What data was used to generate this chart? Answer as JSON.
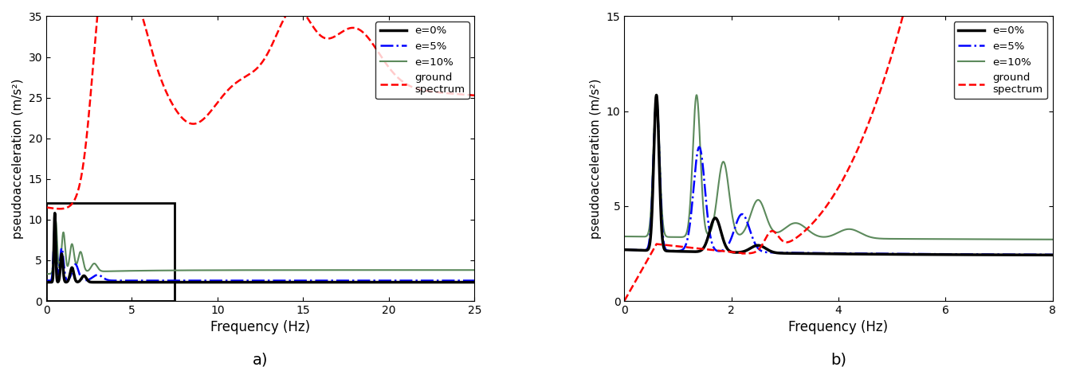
{
  "fig_width": 13.4,
  "fig_height": 4.61,
  "dpi": 100,
  "subplot_a": {
    "xlabel": "Frequency (Hz)",
    "ylabel": "pseudoacceleration (m/s²)",
    "xlim": [
      0,
      25
    ],
    "ylim": [
      0,
      35
    ],
    "yticks": [
      0,
      5,
      10,
      15,
      20,
      25,
      30,
      35
    ],
    "xticks": [
      0,
      5,
      10,
      15,
      20,
      25
    ],
    "label_a": "a)",
    "rect_x0": 0,
    "rect_y0": 0,
    "rect_x1": 7.5,
    "rect_y1": 12,
    "e0_color": "#000000",
    "e0_lw": 2.5,
    "e0_ls": "-",
    "e5_color": "#0000ff",
    "e5_lw": 1.8,
    "e5_ls": "-.",
    "e10_color": "#5c8a5c",
    "e10_lw": 1.5,
    "e10_ls": "-",
    "ground_color": "#ff0000",
    "ground_lw": 1.8,
    "ground_ls": "--"
  },
  "subplot_b": {
    "xlabel": "Frequency (Hz)",
    "ylabel": "pseudoacceleration (m/s²)",
    "xlim": [
      0,
      8
    ],
    "ylim": [
      0,
      15
    ],
    "yticks": [
      0,
      5,
      10,
      15
    ],
    "xticks": [
      0,
      2,
      4,
      6,
      8
    ],
    "label_b": "b)",
    "e0_color": "#000000",
    "e0_lw": 2.5,
    "e0_ls": "-",
    "e5_color": "#0000ff",
    "e5_lw": 1.8,
    "e5_ls": "-.",
    "e10_color": "#5c8a5c",
    "e10_lw": 1.5,
    "e10_ls": "-",
    "ground_color": "#ff0000",
    "ground_lw": 1.8,
    "ground_ls": "--"
  }
}
